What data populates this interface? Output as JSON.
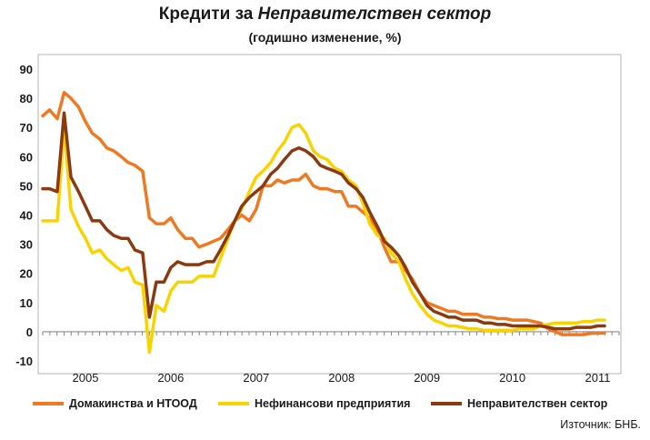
{
  "title": {
    "prefix": "Кредити за ",
    "emphasis": "Неправителствен сектор"
  },
  "subtitle": "(годишно изменение, %)",
  "source": "Източник: БНБ.",
  "chart_data": {
    "type": "line",
    "title": "Кредити за Неправителствен сектор",
    "subtitle": "(годишно изменение, %)",
    "ylim": [
      -10,
      90
    ],
    "yticks": [
      -10,
      0,
      10,
      20,
      30,
      40,
      50,
      60,
      70,
      80,
      90
    ],
    "xlim": [
      2004.5,
      2011.25
    ],
    "xtick_labels": [
      "2005",
      "2006",
      "2007",
      "2008",
      "2009",
      "2010",
      "2011"
    ],
    "xtick_positions": [
      2005,
      2006,
      2007,
      2008,
      2009,
      2010,
      2011
    ],
    "grid": false,
    "legend_position": "bottom",
    "series": [
      {
        "name": "Домакинства и НТООД",
        "color": "#F07820",
        "x": [
          2004.5,
          2004.58,
          2004.67,
          2004.75,
          2004.83,
          2004.92,
          2005.0,
          2005.08,
          2005.17,
          2005.25,
          2005.33,
          2005.42,
          2005.5,
          2005.58,
          2005.67,
          2005.75,
          2005.83,
          2005.92,
          2006.0,
          2006.08,
          2006.17,
          2006.25,
          2006.33,
          2006.42,
          2006.5,
          2006.58,
          2006.67,
          2006.75,
          2006.83,
          2006.92,
          2007.0,
          2007.08,
          2007.17,
          2007.25,
          2007.33,
          2007.42,
          2007.5,
          2007.58,
          2007.67,
          2007.75,
          2007.83,
          2007.92,
          2008.0,
          2008.08,
          2008.17,
          2008.25,
          2008.33,
          2008.42,
          2008.5,
          2008.58,
          2008.67,
          2008.75,
          2008.83,
          2008.92,
          2009.0,
          2009.08,
          2009.17,
          2009.25,
          2009.33,
          2009.42,
          2009.5,
          2009.58,
          2009.67,
          2009.75,
          2009.83,
          2009.92,
          2010.0,
          2010.08,
          2010.17,
          2010.25,
          2010.33,
          2010.42,
          2010.5,
          2010.58,
          2010.67,
          2010.75,
          2010.83,
          2010.92,
          2011.0,
          2011.08
        ],
        "values": [
          74,
          76,
          73,
          82,
          80,
          77,
          72,
          68,
          66,
          63,
          62,
          60,
          58,
          57,
          55,
          39,
          37,
          37,
          39,
          35,
          32,
          32,
          29,
          30,
          31,
          32,
          35,
          38,
          40,
          38,
          42,
          50,
          50,
          52,
          51,
          52,
          52,
          54,
          50,
          49,
          49,
          48,
          48,
          43,
          43,
          41,
          39,
          35,
          29,
          24,
          24,
          21,
          18,
          13,
          10,
          9,
          8,
          7,
          7,
          6,
          6,
          6,
          5,
          5,
          4.5,
          4.5,
          4,
          4,
          4,
          3.5,
          3,
          1,
          0,
          -1,
          -1,
          -1,
          -1,
          -0.5,
          -0.5,
          -0.5
        ]
      },
      {
        "name": "Нефинансови предприятия",
        "color": "#F7D400",
        "x": [
          2004.5,
          2004.58,
          2004.67,
          2004.75,
          2004.83,
          2004.92,
          2005.0,
          2005.08,
          2005.17,
          2005.25,
          2005.33,
          2005.42,
          2005.5,
          2005.58,
          2005.67,
          2005.75,
          2005.83,
          2005.92,
          2006.0,
          2006.08,
          2006.17,
          2006.25,
          2006.33,
          2006.42,
          2006.5,
          2006.58,
          2006.67,
          2006.75,
          2006.83,
          2006.92,
          2007.0,
          2007.08,
          2007.17,
          2007.25,
          2007.33,
          2007.42,
          2007.5,
          2007.58,
          2007.67,
          2007.75,
          2007.83,
          2007.92,
          2008.0,
          2008.08,
          2008.17,
          2008.25,
          2008.33,
          2008.42,
          2008.5,
          2008.58,
          2008.67,
          2008.75,
          2008.83,
          2008.92,
          2009.0,
          2009.08,
          2009.17,
          2009.25,
          2009.33,
          2009.42,
          2009.5,
          2009.58,
          2009.67,
          2009.75,
          2009.83,
          2009.92,
          2010.0,
          2010.08,
          2010.17,
          2010.25,
          2010.33,
          2010.42,
          2010.5,
          2010.58,
          2010.67,
          2010.75,
          2010.83,
          2010.92,
          2011.0,
          2011.08
        ],
        "values": [
          38,
          38,
          38,
          70,
          42,
          36,
          32,
          27,
          28,
          25,
          23,
          21,
          22,
          17,
          16,
          -7,
          9,
          7,
          14,
          17,
          17,
          17,
          19,
          19,
          19,
          25,
          32,
          38,
          42,
          48,
          53,
          55,
          58,
          62,
          65,
          70,
          71,
          68,
          62,
          60,
          59,
          56,
          55,
          52,
          50,
          44,
          37,
          33,
          32,
          27,
          24,
          18,
          13,
          9,
          6,
          4,
          3,
          2,
          2,
          1.5,
          1,
          1,
          0.5,
          0.5,
          0.5,
          0.5,
          0.5,
          1,
          1,
          1,
          2,
          2.5,
          3,
          3,
          3,
          3,
          3.5,
          3.5,
          4,
          4
        ]
      },
      {
        "name": "Неправителствен сектор",
        "color": "#8B3A0F",
        "x": [
          2004.5,
          2004.58,
          2004.67,
          2004.75,
          2004.83,
          2004.92,
          2005.0,
          2005.08,
          2005.17,
          2005.25,
          2005.33,
          2005.42,
          2005.5,
          2005.58,
          2005.67,
          2005.75,
          2005.83,
          2005.92,
          2006.0,
          2006.08,
          2006.17,
          2006.25,
          2006.33,
          2006.42,
          2006.5,
          2006.58,
          2006.67,
          2006.75,
          2006.83,
          2006.92,
          2007.0,
          2007.08,
          2007.17,
          2007.25,
          2007.33,
          2007.42,
          2007.5,
          2007.58,
          2007.67,
          2007.75,
          2007.83,
          2007.92,
          2008.0,
          2008.08,
          2008.17,
          2008.25,
          2008.33,
          2008.42,
          2008.5,
          2008.58,
          2008.67,
          2008.75,
          2008.83,
          2008.92,
          2009.0,
          2009.08,
          2009.17,
          2009.25,
          2009.33,
          2009.42,
          2009.5,
          2009.58,
          2009.67,
          2009.75,
          2009.83,
          2009.92,
          2010.0,
          2010.08,
          2010.17,
          2010.25,
          2010.33,
          2010.42,
          2010.5,
          2010.58,
          2010.67,
          2010.75,
          2010.83,
          2010.92,
          2011.0,
          2011.08
        ],
        "values": [
          49,
          49,
          48,
          75,
          53,
          48,
          43,
          38,
          38,
          35,
          33,
          32,
          32,
          28,
          27,
          5,
          17,
          17,
          22,
          24,
          23,
          23,
          23,
          24,
          24,
          28,
          33,
          38,
          43,
          46,
          48,
          50,
          54,
          56,
          59,
          62,
          63,
          62,
          60,
          57,
          56,
          55,
          54,
          51,
          49,
          46,
          41,
          36,
          31,
          29,
          26,
          22,
          17,
          13,
          9,
          7,
          6,
          5,
          5,
          4,
          4,
          4,
          3,
          3,
          2.5,
          2.5,
          2,
          2,
          2,
          2,
          2,
          1.5,
          1,
          1,
          1,
          1.5,
          1.5,
          1.5,
          2,
          2
        ]
      }
    ]
  }
}
